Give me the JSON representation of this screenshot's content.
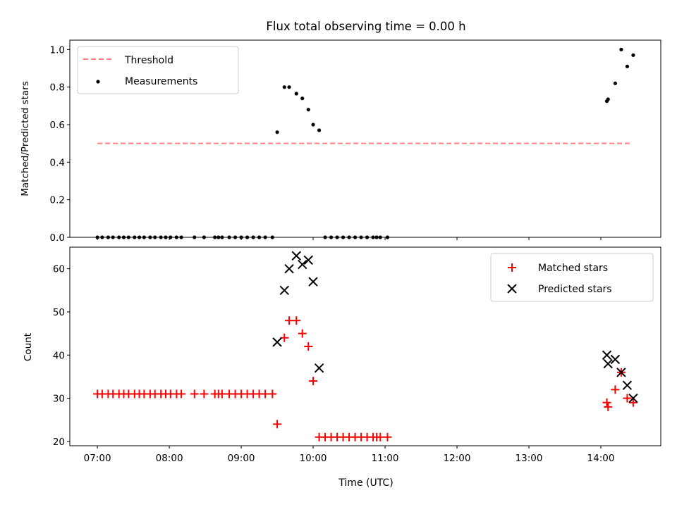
{
  "chart_data": [
    {
      "type": "scatter",
      "title": "Flux total observing time = 0.00 h",
      "xlabel": "",
      "ylabel": "Matched/Predicted stars",
      "ylim": [
        0.0,
        1.05
      ],
      "xlim": [
        "06:37",
        "14:50"
      ],
      "yticks": [
        0.0,
        0.2,
        0.4,
        0.6,
        0.8,
        1.0
      ],
      "ytick_labels": [
        "0.0",
        "0.2",
        "0.4",
        "0.6",
        "0.8",
        "1.0"
      ],
      "grid": false,
      "legend_position": "top-left",
      "threshold": {
        "name": "Threshold",
        "value": 0.5,
        "x_start": "07:00",
        "x_end": "14:24",
        "color": "#ff7f7f"
      },
      "series": [
        {
          "name": "Measurements",
          "color": "#000000",
          "points": [
            [
              "07:00",
              0.0
            ],
            [
              "07:04",
              0.0
            ],
            [
              "07:09",
              0.0
            ],
            [
              "07:13",
              0.0
            ],
            [
              "07:18",
              0.0
            ],
            [
              "07:22",
              0.0
            ],
            [
              "07:26",
              0.0
            ],
            [
              "07:31",
              0.0
            ],
            [
              "07:35",
              0.0
            ],
            [
              "07:39",
              0.0
            ],
            [
              "07:44",
              0.0
            ],
            [
              "07:48",
              0.0
            ],
            [
              "07:53",
              0.0
            ],
            [
              "07:57",
              0.0
            ],
            [
              "08:01",
              0.0
            ],
            [
              "08:06",
              0.0
            ],
            [
              "08:10",
              0.0
            ],
            [
              "08:21",
              0.0
            ],
            [
              "08:29",
              0.0
            ],
            [
              "08:38",
              0.0
            ],
            [
              "08:41",
              0.0
            ],
            [
              "08:44",
              0.0
            ],
            [
              "08:50",
              0.0
            ],
            [
              "08:55",
              0.0
            ],
            [
              "09:00",
              0.0
            ],
            [
              "09:05",
              0.0
            ],
            [
              "09:10",
              0.0
            ],
            [
              "09:15",
              0.0
            ],
            [
              "09:20",
              0.0
            ],
            [
              "09:26",
              0.0
            ],
            [
              "09:30",
              0.56
            ],
            [
              "09:36",
              0.8
            ],
            [
              "09:40",
              0.8
            ],
            [
              "09:46",
              0.765
            ],
            [
              "09:51",
              0.74
            ],
            [
              "09:56",
              0.68
            ],
            [
              "10:00",
              0.6
            ],
            [
              "10:05",
              0.57
            ],
            [
              "10:10",
              0.0
            ],
            [
              "10:15",
              0.0
            ],
            [
              "10:20",
              0.0
            ],
            [
              "10:25",
              0.0
            ],
            [
              "10:30",
              0.0
            ],
            [
              "10:35",
              0.0
            ],
            [
              "10:40",
              0.0
            ],
            [
              "10:45",
              0.0
            ],
            [
              "10:50",
              0.0
            ],
            [
              "10:53",
              0.0
            ],
            [
              "10:56",
              0.0
            ],
            [
              "11:02",
              0.0
            ],
            [
              "14:05",
              0.725
            ],
            [
              "14:06",
              0.735
            ],
            [
              "14:12",
              0.82
            ],
            [
              "14:17",
              1.0
            ],
            [
              "14:22",
              0.91
            ],
            [
              "14:27",
              0.97
            ]
          ]
        }
      ]
    },
    {
      "type": "scatter",
      "title": "",
      "xlabel": "Time (UTC)",
      "ylabel": "Count",
      "ylim": [
        19.0,
        65.0
      ],
      "xlim": [
        "06:37",
        "14:50"
      ],
      "yticks": [
        20,
        30,
        40,
        50,
        60
      ],
      "ytick_labels": [
        "20",
        "30",
        "40",
        "50",
        "60"
      ],
      "xticks": [
        "07:00",
        "08:00",
        "09:00",
        "10:00",
        "11:00",
        "12:00",
        "13:00",
        "14:00"
      ],
      "xtick_labels": [
        "07:00",
        "08:00",
        "09:00",
        "10:00",
        "11:00",
        "12:00",
        "13:00",
        "14:00"
      ],
      "grid": false,
      "legend_position": "top-right",
      "series": [
        {
          "name": "Matched stars",
          "color": "#ff0000",
          "marker": "+",
          "points": [
            [
              "07:00",
              31
            ],
            [
              "07:04",
              31
            ],
            [
              "07:09",
              31
            ],
            [
              "07:13",
              31
            ],
            [
              "07:18",
              31
            ],
            [
              "07:22",
              31
            ],
            [
              "07:26",
              31
            ],
            [
              "07:31",
              31
            ],
            [
              "07:35",
              31
            ],
            [
              "07:39",
              31
            ],
            [
              "07:44",
              31
            ],
            [
              "07:48",
              31
            ],
            [
              "07:53",
              31
            ],
            [
              "07:57",
              31
            ],
            [
              "08:01",
              31
            ],
            [
              "08:06",
              31
            ],
            [
              "08:10",
              31
            ],
            [
              "08:21",
              31
            ],
            [
              "08:29",
              31
            ],
            [
              "08:38",
              31
            ],
            [
              "08:41",
              31
            ],
            [
              "08:44",
              31
            ],
            [
              "08:50",
              31
            ],
            [
              "08:55",
              31
            ],
            [
              "09:00",
              31
            ],
            [
              "09:05",
              31
            ],
            [
              "09:10",
              31
            ],
            [
              "09:15",
              31
            ],
            [
              "09:20",
              31
            ],
            [
              "09:26",
              31
            ],
            [
              "09:30",
              24
            ],
            [
              "09:36",
              44
            ],
            [
              "09:40",
              48
            ],
            [
              "09:46",
              48
            ],
            [
              "09:51",
              45
            ],
            [
              "09:56",
              42
            ],
            [
              "10:00",
              34
            ],
            [
              "10:05",
              21
            ],
            [
              "10:10",
              21
            ],
            [
              "10:15",
              21
            ],
            [
              "10:20",
              21
            ],
            [
              "10:25",
              21
            ],
            [
              "10:30",
              21
            ],
            [
              "10:35",
              21
            ],
            [
              "10:40",
              21
            ],
            [
              "10:45",
              21
            ],
            [
              "10:50",
              21
            ],
            [
              "10:53",
              21
            ],
            [
              "10:56",
              21
            ],
            [
              "11:02",
              21
            ],
            [
              "14:05",
              29
            ],
            [
              "14:06",
              28
            ],
            [
              "14:12",
              32
            ],
            [
              "14:17",
              36
            ],
            [
              "14:22",
              30
            ],
            [
              "14:27",
              29
            ]
          ]
        },
        {
          "name": "Predicted stars",
          "color": "#000000",
          "marker": "x",
          "points": [
            [
              "09:30",
              43
            ],
            [
              "09:36",
              55
            ],
            [
              "09:40",
              60
            ],
            [
              "09:46",
              63
            ],
            [
              "09:51",
              61
            ],
            [
              "09:56",
              62
            ],
            [
              "10:00",
              57
            ],
            [
              "10:05",
              37
            ],
            [
              "14:05",
              40
            ],
            [
              "14:06",
              38
            ],
            [
              "14:12",
              39
            ],
            [
              "14:17",
              36
            ],
            [
              "14:22",
              33
            ],
            [
              "14:27",
              30
            ]
          ]
        }
      ]
    }
  ]
}
